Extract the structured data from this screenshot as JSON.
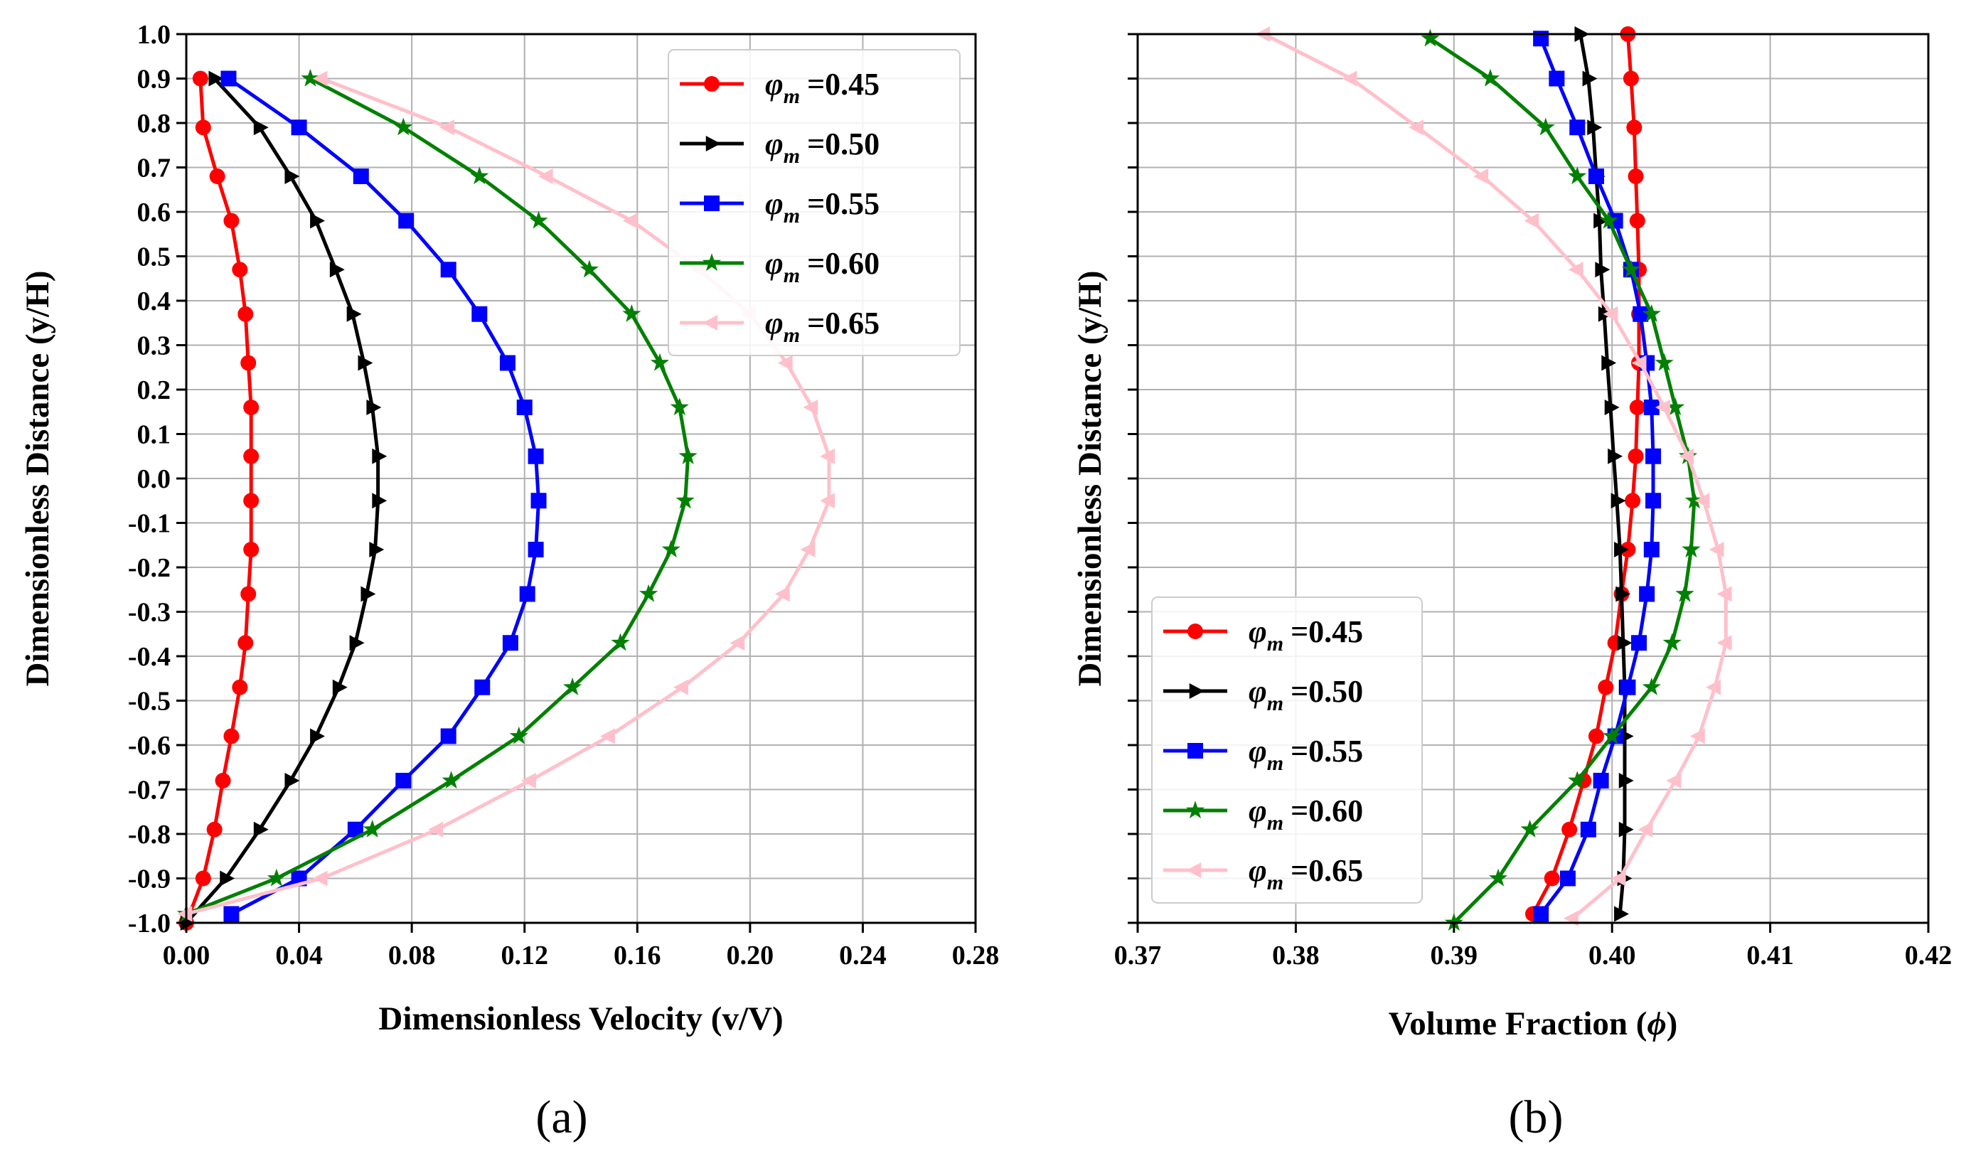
{
  "chart_data": [
    {
      "type": "line",
      "panel_label": "(a)",
      "title": "",
      "xlabel": "Dimensionless Velocity (v/V)",
      "ylabel": "Dimensionless Distance (y/H)",
      "xlim": [
        0.0,
        0.28
      ],
      "ylim": [
        -1.0,
        1.0
      ],
      "xticks": [
        "0.00",
        "0.04",
        "0.08",
        "0.12",
        "0.16",
        "0.20",
        "0.24",
        "0.28"
      ],
      "yticks": [
        "1.0",
        "0.9",
        "0.8",
        "0.7",
        "0.6",
        "0.5",
        "0.4",
        "0.3",
        "0.2",
        "0.1",
        "0.0",
        "-0.1",
        "-0.2",
        "-0.3",
        "-0.4",
        "-0.5",
        "-0.6",
        "-0.7",
        "-0.8",
        "-0.9",
        "-1.0"
      ],
      "grid": true,
      "legend_position": "top-right",
      "legend_symbol": "φ",
      "legend_subscript": "m",
      "series": [
        {
          "name": "=0.45",
          "color": "#ff0000",
          "marker": "circle",
          "x": [
            0.005,
            0.006,
            0.011,
            0.016,
            0.019,
            0.021,
            0.022,
            0.023,
            0.023,
            0.023,
            0.023,
            0.022,
            0.021,
            0.019,
            0.016,
            0.013,
            0.01,
            0.006,
            0.0
          ],
          "y": [
            0.9,
            0.79,
            0.68,
            0.58,
            0.47,
            0.37,
            0.26,
            0.16,
            0.05,
            -0.05,
            -0.16,
            -0.26,
            -0.37,
            -0.47,
            -0.58,
            -0.68,
            -0.79,
            -0.9,
            -1.0
          ]
        },
        {
          "name": "=0.50",
          "color": "#000000",
          "marker": "triangle-right",
          "x": [
            0.01,
            0.026,
            0.037,
            0.046,
            0.053,
            0.059,
            0.063,
            0.066,
            0.068,
            0.068,
            0.067,
            0.064,
            0.06,
            0.054,
            0.046,
            0.037,
            0.026,
            0.014,
            0.0
          ],
          "y": [
            0.9,
            0.79,
            0.68,
            0.58,
            0.47,
            0.37,
            0.26,
            0.16,
            0.05,
            -0.05,
            -0.16,
            -0.26,
            -0.37,
            -0.47,
            -0.58,
            -0.68,
            -0.79,
            -0.9,
            -1.0
          ]
        },
        {
          "name": "=0.55",
          "color": "#0000ff",
          "marker": "square",
          "x": [
            0.015,
            0.04,
            0.062,
            0.078,
            0.093,
            0.104,
            0.114,
            0.12,
            0.124,
            0.125,
            0.124,
            0.121,
            0.115,
            0.105,
            0.093,
            0.077,
            0.06,
            0.04,
            0.016
          ],
          "y": [
            0.9,
            0.79,
            0.68,
            0.58,
            0.47,
            0.37,
            0.26,
            0.16,
            0.05,
            -0.05,
            -0.16,
            -0.26,
            -0.37,
            -0.47,
            -0.58,
            -0.68,
            -0.79,
            -0.9,
            -0.98
          ]
        },
        {
          "name": "=0.60",
          "color": "#008000",
          "marker": "star",
          "x": [
            0.044,
            0.077,
            0.104,
            0.125,
            0.143,
            0.158,
            0.168,
            0.175,
            0.178,
            0.177,
            0.172,
            0.164,
            0.154,
            0.137,
            0.118,
            0.094,
            0.066,
            0.032,
            0.0
          ],
          "y": [
            0.9,
            0.79,
            0.68,
            0.58,
            0.47,
            0.37,
            0.26,
            0.16,
            0.05,
            -0.05,
            -0.16,
            -0.26,
            -0.37,
            -0.47,
            -0.58,
            -0.68,
            -0.79,
            -0.9,
            -0.98
          ]
        },
        {
          "name": "=0.65",
          "color": "#ffc0cb",
          "marker": "triangle-left",
          "x": [
            0.048,
            0.093,
            0.128,
            0.158,
            0.182,
            0.2,
            0.213,
            0.222,
            0.228,
            0.228,
            0.221,
            0.212,
            0.196,
            0.176,
            0.15,
            0.122,
            0.089,
            0.048,
            0.0
          ],
          "y": [
            0.9,
            0.79,
            0.68,
            0.58,
            0.47,
            0.37,
            0.26,
            0.16,
            0.05,
            -0.05,
            -0.16,
            -0.26,
            -0.37,
            -0.47,
            -0.58,
            -0.68,
            -0.79,
            -0.9,
            -0.98
          ]
        }
      ]
    },
    {
      "type": "line",
      "panel_label": "(b)",
      "title": "",
      "xlabel": "Volume Fraction (",
      "xlabel_symbol": "ϕ",
      "xlabel_end": ")",
      "ylabel": "Dimensionless Distance (y/H)",
      "xlim": [
        0.37,
        0.42
      ],
      "ylim": [
        -1.0,
        1.0
      ],
      "xticks": [
        "0.37",
        "0.38",
        "0.39",
        "0.40",
        "0.41",
        "0.42"
      ],
      "yticks": [],
      "grid": true,
      "legend_position": "bottom-left",
      "legend_symbol": "φ",
      "legend_subscript": "m",
      "series": [
        {
          "name": "=0.45",
          "color": "#ff0000",
          "marker": "circle",
          "x": [
            0.401,
            0.4012,
            0.4014,
            0.4015,
            0.4016,
            0.4017,
            0.4017,
            0.4017,
            0.4016,
            0.4015,
            0.4013,
            0.401,
            0.4006,
            0.4002,
            0.3996,
            0.399,
            0.3982,
            0.3973,
            0.3962,
            0.395
          ],
          "y": [
            1.0,
            0.9,
            0.79,
            0.68,
            0.58,
            0.47,
            0.37,
            0.26,
            0.16,
            0.05,
            -0.05,
            -0.16,
            -0.26,
            -0.37,
            -0.47,
            -0.58,
            -0.68,
            -0.79,
            -0.9,
            -0.98
          ]
        },
        {
          "name": "=0.50",
          "color": "#000000",
          "marker": "triangle-right",
          "x": [
            0.398,
            0.3985,
            0.3988,
            0.399,
            0.3992,
            0.3993,
            0.3995,
            0.3997,
            0.3999,
            0.4001,
            0.4003,
            0.4005,
            0.4006,
            0.4007,
            0.4008,
            0.4008,
            0.4008,
            0.4008,
            0.4007,
            0.4005
          ],
          "y": [
            1.0,
            0.9,
            0.79,
            0.68,
            0.58,
            0.47,
            0.37,
            0.26,
            0.16,
            0.05,
            -0.05,
            -0.16,
            -0.26,
            -0.37,
            -0.47,
            -0.58,
            -0.68,
            -0.79,
            -0.9,
            -0.98
          ]
        },
        {
          "name": "=0.55",
          "color": "#0000ff",
          "marker": "square",
          "x": [
            0.3955,
            0.3965,
            0.3978,
            0.399,
            0.4002,
            0.4012,
            0.4018,
            0.4022,
            0.4025,
            0.4026,
            0.4026,
            0.4025,
            0.4022,
            0.4017,
            0.401,
            0.4002,
            0.3993,
            0.3985,
            0.3972,
            0.3955
          ],
          "y": [
            0.99,
            0.9,
            0.79,
            0.68,
            0.58,
            0.47,
            0.37,
            0.26,
            0.16,
            0.05,
            -0.05,
            -0.16,
            -0.26,
            -0.37,
            -0.47,
            -0.58,
            -0.68,
            -0.79,
            -0.9,
            -0.98
          ]
        },
        {
          "name": "=0.60",
          "color": "#008000",
          "marker": "star",
          "x": [
            0.3885,
            0.3923,
            0.3958,
            0.3978,
            0.3998,
            0.4012,
            0.4025,
            0.4033,
            0.404,
            0.4048,
            0.4052,
            0.405,
            0.4046,
            0.4038,
            0.4025,
            0.4,
            0.3978,
            0.3948,
            0.3928,
            0.39
          ],
          "y": [
            0.99,
            0.9,
            0.79,
            0.68,
            0.58,
            0.47,
            0.37,
            0.26,
            0.16,
            0.05,
            -0.05,
            -0.16,
            -0.26,
            -0.37,
            -0.47,
            -0.58,
            -0.68,
            -0.79,
            -0.9,
            -1.0
          ]
        },
        {
          "name": "=0.65",
          "color": "#ffc0cb",
          "marker": "triangle-left",
          "x": [
            0.378,
            0.3835,
            0.3877,
            0.3918,
            0.395,
            0.3978,
            0.4,
            0.4018,
            0.4033,
            0.4048,
            0.4058,
            0.4067,
            0.4072,
            0.4072,
            0.4065,
            0.4055,
            0.404,
            0.4022,
            0.4005,
            0.3975
          ],
          "y": [
            1.0,
            0.9,
            0.79,
            0.68,
            0.58,
            0.47,
            0.37,
            0.26,
            0.16,
            0.05,
            -0.05,
            -0.16,
            -0.26,
            -0.37,
            -0.47,
            -0.58,
            -0.68,
            -0.79,
            -0.9,
            -0.99
          ]
        }
      ]
    }
  ]
}
